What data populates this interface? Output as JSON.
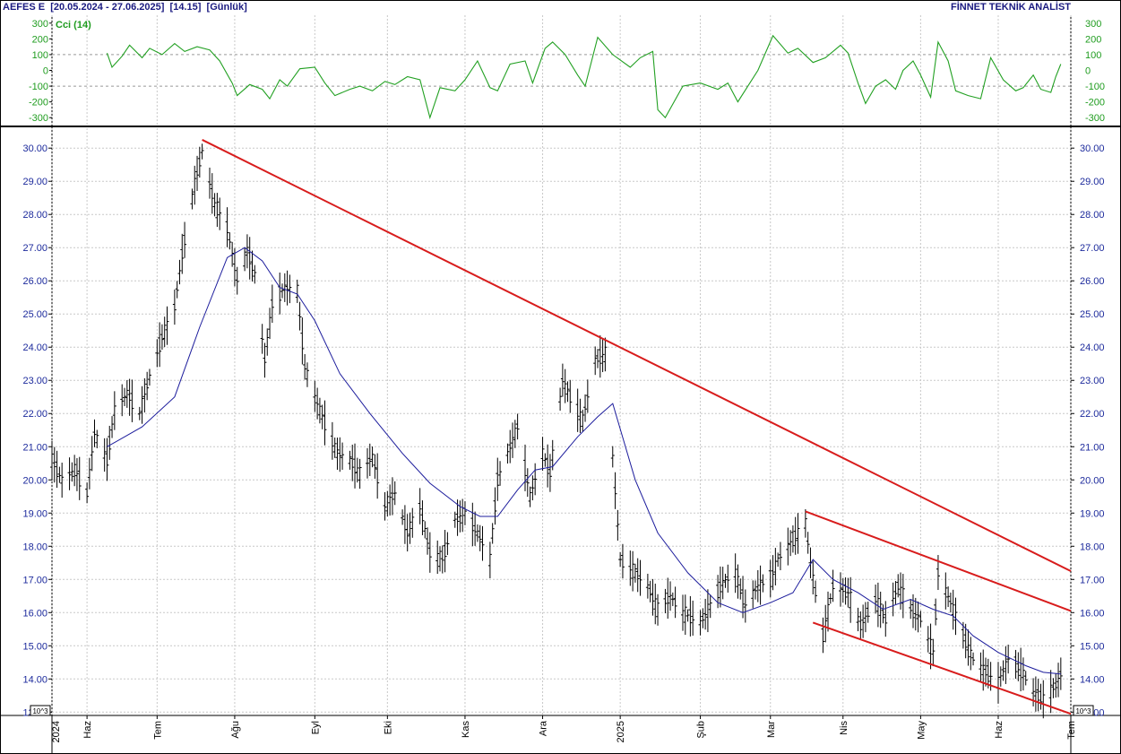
{
  "header": {
    "symbol": "AEFES E",
    "range": "[20.05.2024 - 27.06.2025]",
    "value": "[14.15]",
    "period": "[Günlük]",
    "brand": "FİNNET TEKNİK ANALİST"
  },
  "colors": {
    "price_bars": "#000000",
    "moving_average": "#1c1c9c",
    "trendlines": "#d81c1c",
    "cci_line": "#22a022",
    "cci_labels": "#1f9c1f",
    "price_labels": "#1c2a9c",
    "grid": "#c8c8c8"
  },
  "chart_data": [
    {
      "type": "line",
      "panel": "indicator",
      "legend": "Cci (14)",
      "y_ticks": [
        "300",
        "200",
        "100",
        "0",
        "-100",
        "-200",
        "-300"
      ],
      "ylim": [
        -350,
        350
      ],
      "reference_lines": [
        100,
        -100
      ],
      "series": [
        {
          "name": "Cci (14)",
          "points": [
            [
              "2024-06-11",
              110
            ],
            [
              "2024-06-13",
              20
            ],
            [
              "2024-06-17",
              90
            ],
            [
              "2024-06-20",
              160
            ],
            [
              "2024-06-25",
              80
            ],
            [
              "2024-06-28",
              140
            ],
            [
              "2024-07-03",
              100
            ],
            [
              "2024-07-08",
              170
            ],
            [
              "2024-07-12",
              120
            ],
            [
              "2024-07-17",
              150
            ],
            [
              "2024-07-22",
              130
            ],
            [
              "2024-07-26",
              60
            ],
            [
              "2024-07-31",
              -80
            ],
            [
              "2024-08-02",
              -160
            ],
            [
              "2024-08-07",
              -90
            ],
            [
              "2024-08-12",
              -120
            ],
            [
              "2024-08-15",
              -180
            ],
            [
              "2024-08-19",
              -60
            ],
            [
              "2024-08-22",
              -100
            ],
            [
              "2024-08-27",
              10
            ],
            [
              "2024-09-02",
              20
            ],
            [
              "2024-09-06",
              -80
            ],
            [
              "2024-09-10",
              -160
            ],
            [
              "2024-09-16",
              -120
            ],
            [
              "2024-09-20",
              -100
            ],
            [
              "2024-09-25",
              -130
            ],
            [
              "2024-09-30",
              -70
            ],
            [
              "2024-10-04",
              -90
            ],
            [
              "2024-10-09",
              -40
            ],
            [
              "2024-10-14",
              -60
            ],
            [
              "2024-10-18",
              -300
            ],
            [
              "2024-10-22",
              -110
            ],
            [
              "2024-10-28",
              -130
            ],
            [
              "2024-11-01",
              -60
            ],
            [
              "2024-11-06",
              60
            ],
            [
              "2024-11-11",
              -110
            ],
            [
              "2024-11-14",
              -130
            ],
            [
              "2024-11-19",
              40
            ],
            [
              "2024-11-25",
              60
            ],
            [
              "2024-11-28",
              -80
            ],
            [
              "2024-12-03",
              140
            ],
            [
              "2024-12-06",
              180
            ],
            [
              "2024-12-11",
              100
            ],
            [
              "2024-12-16",
              -30
            ],
            [
              "2024-12-19",
              -100
            ],
            [
              "2024-12-24",
              210
            ],
            [
              "2024-12-30",
              100
            ],
            [
              "2025-01-06",
              20
            ],
            [
              "2025-01-10",
              80
            ],
            [
              "2025-01-15",
              120
            ],
            [
              "2025-01-17",
              -250
            ],
            [
              "2025-01-20",
              -300
            ],
            [
              "2025-01-27",
              -100
            ],
            [
              "2025-02-03",
              -80
            ],
            [
              "2025-02-10",
              -120
            ],
            [
              "2025-02-14",
              -80
            ],
            [
              "2025-02-18",
              -200
            ],
            [
              "2025-02-22",
              -100
            ],
            [
              "2025-02-26",
              0
            ],
            [
              "2025-03-04",
              220
            ],
            [
              "2025-03-10",
              110
            ],
            [
              "2025-03-14",
              140
            ],
            [
              "2025-03-20",
              50
            ],
            [
              "2025-03-25",
              80
            ],
            [
              "2025-03-31",
              160
            ],
            [
              "2025-04-03",
              110
            ],
            [
              "2025-04-07",
              -80
            ],
            [
              "2025-04-10",
              -210
            ],
            [
              "2025-04-14",
              -100
            ],
            [
              "2025-04-18",
              -60
            ],
            [
              "2025-04-22",
              -120
            ],
            [
              "2025-04-25",
              0
            ],
            [
              "2025-04-29",
              60
            ],
            [
              "2025-05-02",
              -30
            ],
            [
              "2025-05-06",
              -170
            ],
            [
              "2025-05-09",
              180
            ],
            [
              "2025-05-13",
              60
            ],
            [
              "2025-05-16",
              -130
            ],
            [
              "2025-05-21",
              -160
            ],
            [
              "2025-05-26",
              -180
            ],
            [
              "2025-05-30",
              80
            ],
            [
              "2025-06-04",
              -60
            ],
            [
              "2025-06-09",
              -130
            ],
            [
              "2025-06-12",
              -110
            ],
            [
              "2025-06-16",
              -30
            ],
            [
              "2025-06-19",
              -120
            ],
            [
              "2025-06-23",
              -140
            ],
            [
              "2025-06-25",
              -40
            ],
            [
              "2025-06-27",
              40
            ]
          ]
        }
      ]
    },
    {
      "type": "ohlc",
      "panel": "price",
      "y_ticks": [
        "30.00",
        "29.00",
        "28.00",
        "27.00",
        "26.00",
        "25.00",
        "24.00",
        "23.00",
        "22.00",
        "21.00",
        "20.00",
        "19.00",
        "18.00",
        "17.00",
        "16.00",
        "15.00",
        "14.00",
        "13.00"
      ],
      "ylim": [
        12.9,
        30.6
      ],
      "x_ticks": [
        {
          "date": "2024-05-20",
          "label": "2024"
        },
        {
          "date": "2024-06-03",
          "label": "Haz"
        },
        {
          "date": "2024-07-01",
          "label": "Tem"
        },
        {
          "date": "2024-08-01",
          "label": "Ağu"
        },
        {
          "date": "2024-09-02",
          "label": "Eyl"
        },
        {
          "date": "2024-10-01",
          "label": "Eki"
        },
        {
          "date": "2024-11-01",
          "label": "Kas"
        },
        {
          "date": "2024-12-02",
          "label": "Ara"
        },
        {
          "date": "2025-01-02",
          "label": "2025"
        },
        {
          "date": "2025-02-03",
          "label": "Şub"
        },
        {
          "date": "2025-03-03",
          "label": "Mar"
        },
        {
          "date": "2025-04-01",
          "label": "Nis"
        },
        {
          "date": "2025-05-02",
          "label": "May"
        },
        {
          "date": "2025-06-02",
          "label": "Haz"
        },
        {
          "date": "2025-07-01",
          "label": "Tem"
        }
      ],
      "scale_note": "10^3",
      "close_path": [
        [
          "2024-05-20",
          20.6
        ],
        [
          "2024-05-24",
          20.0
        ],
        [
          "2024-05-29",
          20.3
        ],
        [
          "2024-06-03",
          19.6
        ],
        [
          "2024-06-06",
          21.4
        ],
        [
          "2024-06-11",
          20.6
        ],
        [
          "2024-06-14",
          22.1
        ],
        [
          "2024-06-19",
          22.6
        ],
        [
          "2024-06-24",
          22.0
        ],
        [
          "2024-06-28",
          23.1
        ],
        [
          "2024-07-03",
          24.3
        ],
        [
          "2024-07-08",
          25.2
        ],
        [
          "2024-07-11",
          26.8
        ],
        [
          "2024-07-16",
          28.9
        ],
        [
          "2024-07-19",
          29.9
        ],
        [
          "2024-07-24",
          28.3
        ],
        [
          "2024-07-29",
          27.6
        ],
        [
          "2024-08-02",
          26.0
        ],
        [
          "2024-08-06",
          26.9
        ],
        [
          "2024-08-09",
          26.2
        ],
        [
          "2024-08-13",
          23.6
        ],
        [
          "2024-08-16",
          25.3
        ],
        [
          "2024-08-21",
          25.8
        ],
        [
          "2024-08-26",
          25.7
        ],
        [
          "2024-08-29",
          23.4
        ],
        [
          "2024-09-03",
          22.3
        ],
        [
          "2024-09-06",
          21.7
        ],
        [
          "2024-09-11",
          20.8
        ],
        [
          "2024-09-16",
          20.6
        ],
        [
          "2024-09-20",
          20.2
        ],
        [
          "2024-09-25",
          20.7
        ],
        [
          "2024-09-30",
          19.2
        ],
        [
          "2024-10-04",
          19.6
        ],
        [
          "2024-10-09",
          18.4
        ],
        [
          "2024-10-14",
          19.2
        ],
        [
          "2024-10-18",
          17.8
        ],
        [
          "2024-10-23",
          17.6
        ],
        [
          "2024-10-28",
          18.8
        ],
        [
          "2024-11-01",
          19.0
        ],
        [
          "2024-11-06",
          18.4
        ],
        [
          "2024-11-11",
          17.6
        ],
        [
          "2024-11-14",
          20.0
        ],
        [
          "2024-11-19",
          21.0
        ],
        [
          "2024-11-22",
          21.6
        ],
        [
          "2024-11-27",
          19.5
        ],
        [
          "2024-12-02",
          20.8
        ],
        [
          "2024-12-05",
          20.2
        ],
        [
          "2024-12-10",
          23.0
        ],
        [
          "2024-12-13",
          22.5
        ],
        [
          "2024-12-18",
          21.8
        ],
        [
          "2024-12-23",
          23.6
        ],
        [
          "2024-12-27",
          23.8
        ],
        [
          "2025-01-02",
          17.6
        ],
        [
          "2025-01-08",
          17.2
        ],
        [
          "2025-01-13",
          16.8
        ],
        [
          "2025-01-17",
          16.1
        ],
        [
          "2025-01-22",
          16.5
        ],
        [
          "2025-01-27",
          16.0
        ],
        [
          "2025-02-03",
          15.7
        ],
        [
          "2025-02-07",
          16.2
        ],
        [
          "2025-02-12",
          16.9
        ],
        [
          "2025-02-17",
          17.2
        ],
        [
          "2025-02-21",
          16.2
        ],
        [
          "2025-02-26",
          16.8
        ],
        [
          "2025-03-03",
          17.0
        ],
        [
          "2025-03-06",
          17.6
        ],
        [
          "2025-03-12",
          18.2
        ],
        [
          "2025-03-17",
          18.7
        ],
        [
          "2025-03-19",
          17.5
        ],
        [
          "2025-03-24",
          15.3
        ],
        [
          "2025-03-28",
          16.8
        ],
        [
          "2025-04-03",
          16.6
        ],
        [
          "2025-04-08",
          15.6
        ],
        [
          "2025-04-14",
          16.4
        ],
        [
          "2025-04-18",
          15.8
        ],
        [
          "2025-04-23",
          16.8
        ],
        [
          "2025-04-28",
          16.1
        ],
        [
          "2025-05-02",
          15.8
        ],
        [
          "2025-05-07",
          14.8
        ],
        [
          "2025-05-09",
          17.2
        ],
        [
          "2025-05-14",
          16.3
        ],
        [
          "2025-05-19",
          15.3
        ],
        [
          "2025-05-23",
          14.6
        ],
        [
          "2025-05-28",
          14.2
        ],
        [
          "2025-06-02",
          13.9
        ],
        [
          "2025-06-06",
          14.6
        ],
        [
          "2025-06-11",
          14.3
        ],
        [
          "2025-06-16",
          13.6
        ],
        [
          "2025-06-20",
          13.4
        ],
        [
          "2025-06-25",
          13.8
        ],
        [
          "2025-06-27",
          14.15
        ]
      ],
      "moving_average": [
        [
          "2024-06-11",
          21.0
        ],
        [
          "2024-06-25",
          21.6
        ],
        [
          "2024-07-08",
          22.5
        ],
        [
          "2024-07-18",
          24.6
        ],
        [
          "2024-07-29",
          26.7
        ],
        [
          "2024-08-05",
          27.0
        ],
        [
          "2024-08-12",
          26.6
        ],
        [
          "2024-08-19",
          25.8
        ],
        [
          "2024-08-26",
          25.6
        ],
        [
          "2024-09-02",
          24.8
        ],
        [
          "2024-09-12",
          23.2
        ],
        [
          "2024-09-24",
          22.0
        ],
        [
          "2024-10-07",
          20.8
        ],
        [
          "2024-10-18",
          19.9
        ],
        [
          "2024-10-30",
          19.2
        ],
        [
          "2024-11-07",
          18.9
        ],
        [
          "2024-11-14",
          18.9
        ],
        [
          "2024-11-22",
          19.7
        ],
        [
          "2024-11-29",
          20.3
        ],
        [
          "2024-12-06",
          20.4
        ],
        [
          "2024-12-16",
          21.3
        ],
        [
          "2024-12-24",
          21.9
        ],
        [
          "2024-12-30",
          22.3
        ],
        [
          "2025-01-08",
          20.0
        ],
        [
          "2025-01-17",
          18.4
        ],
        [
          "2025-01-29",
          17.2
        ],
        [
          "2025-02-10",
          16.3
        ],
        [
          "2025-02-20",
          16.0
        ],
        [
          "2025-03-03",
          16.3
        ],
        [
          "2025-03-12",
          16.6
        ],
        [
          "2025-03-20",
          17.6
        ],
        [
          "2025-03-28",
          17.0
        ],
        [
          "2025-04-07",
          16.6
        ],
        [
          "2025-04-17",
          16.1
        ],
        [
          "2025-04-28",
          16.4
        ],
        [
          "2025-05-07",
          16.1
        ],
        [
          "2025-05-15",
          15.9
        ],
        [
          "2025-05-23",
          15.3
        ],
        [
          "2025-06-02",
          14.8
        ],
        [
          "2025-06-13",
          14.4
        ],
        [
          "2025-06-20",
          14.2
        ],
        [
          "2025-06-27",
          14.15
        ]
      ],
      "trendlines": [
        {
          "from": [
            "2024-07-19",
            30.25
          ],
          "to": [
            "2025-07-01",
            17.25
          ]
        },
        {
          "from": [
            "2025-03-17",
            19.05
          ],
          "to": [
            "2025-07-01",
            16.05
          ]
        },
        {
          "from": [
            "2025-03-20",
            15.7
          ],
          "to": [
            "2025-07-01",
            12.95
          ]
        }
      ]
    }
  ]
}
